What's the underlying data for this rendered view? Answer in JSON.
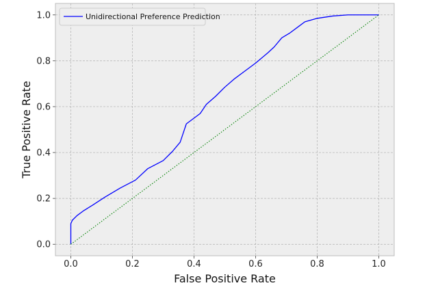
{
  "chart_data": {
    "type": "line",
    "title": "",
    "xlabel": "False Positive Rate",
    "ylabel": "True Positive Rate",
    "xlim": [
      -0.05,
      1.05
    ],
    "ylim": [
      -0.05,
      1.05
    ],
    "xticks": [
      0.0,
      0.2,
      0.4,
      0.6,
      0.8,
      1.0
    ],
    "yticks": [
      0.0,
      0.2,
      0.4,
      0.6,
      0.8,
      1.0
    ],
    "xtick_labels": [
      "0.0",
      "0.2",
      "0.4",
      "0.6",
      "0.8",
      "1.0"
    ],
    "ytick_labels": [
      "0.0",
      "0.2",
      "0.4",
      "0.6",
      "0.8",
      "1.0"
    ],
    "grid": true,
    "legend_position": "top-left",
    "series": [
      {
        "name": "Unidirectional Preference Prediction",
        "color": "#0000ff",
        "style": "solid",
        "x": [
          0.0,
          0.0,
          0.005,
          0.02,
          0.04,
          0.07,
          0.11,
          0.16,
          0.21,
          0.25,
          0.3,
          0.33,
          0.355,
          0.375,
          0.4,
          0.42,
          0.44,
          0.47,
          0.5,
          0.53,
          0.56,
          0.6,
          0.64,
          0.66,
          0.685,
          0.71,
          0.74,
          0.76,
          0.8,
          0.85,
          0.9,
          0.95,
          1.0
        ],
        "y": [
          0.0,
          0.09,
          0.105,
          0.125,
          0.145,
          0.17,
          0.205,
          0.245,
          0.28,
          0.33,
          0.365,
          0.405,
          0.445,
          0.525,
          0.55,
          0.57,
          0.61,
          0.645,
          0.685,
          0.72,
          0.75,
          0.79,
          0.835,
          0.86,
          0.9,
          0.92,
          0.95,
          0.97,
          0.985,
          0.995,
          1.0,
          1.0,
          1.0
        ]
      },
      {
        "name": "",
        "color": "#008000",
        "style": "dotted",
        "x": [
          0.0,
          1.0
        ],
        "y": [
          0.0,
          1.0
        ]
      }
    ]
  },
  "colors": {
    "plot_background": "#eeeeee",
    "grid": "#b0b0b0",
    "axes_border": "#bcbcbc"
  }
}
